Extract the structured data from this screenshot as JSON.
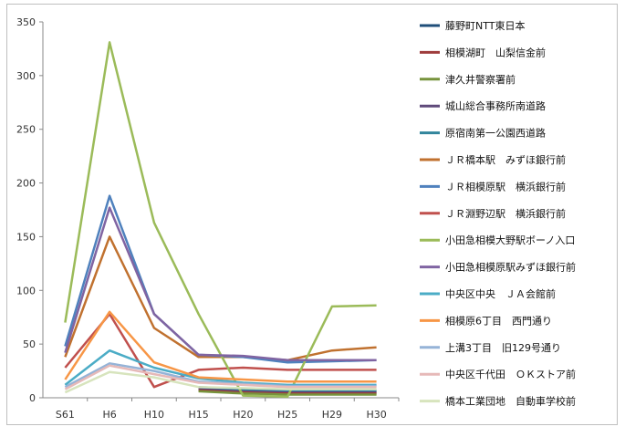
{
  "chart_data": {
    "type": "line",
    "title": "",
    "xlabel": "",
    "ylabel": "",
    "categories": [
      "S61",
      "H6",
      "H10",
      "H15",
      "H20",
      "H25",
      "H29",
      "H30"
    ],
    "ylim": [
      0,
      350
    ],
    "yticks": [
      0,
      50,
      100,
      150,
      200,
      250,
      300,
      350
    ],
    "grid": false,
    "legend": "right",
    "series": [
      {
        "name": "藤野町NTT東日本",
        "color": "#1f4e79",
        "values": [
          null,
          null,
          null,
          8,
          6,
          5,
          5,
          5
        ]
      },
      {
        "name": "相模湖町　山梨信金前",
        "color": "#9e3b3b",
        "values": [
          null,
          null,
          null,
          7,
          5,
          4,
          4,
          4
        ]
      },
      {
        "name": "津久井警察署前",
        "color": "#77933c",
        "values": [
          null,
          null,
          null,
          6,
          4,
          3,
          3,
          3
        ]
      },
      {
        "name": "城山総合事務所南道路",
        "color": "#5f497a",
        "values": [
          null,
          null,
          null,
          9,
          7,
          6,
          6,
          6
        ]
      },
      {
        "name": "原宿南第一公園西道路",
        "color": "#31859c",
        "values": [
          null,
          null,
          null,
          10,
          8,
          7,
          7,
          7
        ]
      },
      {
        "name": "ＪＲ橋本駅　みずほ銀行前",
        "color": "#c0712f",
        "values": [
          38,
          150,
          65,
          38,
          38,
          35,
          44,
          47
        ]
      },
      {
        "name": "ＪＲ相模原駅　横浜銀行前",
        "color": "#4f81bd",
        "values": [
          48,
          188,
          78,
          40,
          38,
          33,
          34,
          35
        ]
      },
      {
        "name": "ＪＲ淵野辺駅　横浜銀行前",
        "color": "#c0504d",
        "values": [
          28,
          78,
          10,
          26,
          28,
          26,
          26,
          26
        ]
      },
      {
        "name": "小田急相模大野駅ボーノ入口",
        "color": "#9bbb59",
        "values": [
          70,
          331,
          163,
          78,
          2,
          1,
          85,
          86
        ]
      },
      {
        "name": "小田急相模原駅みずほ銀行前",
        "color": "#8064a2",
        "values": [
          42,
          177,
          78,
          40,
          39,
          35,
          35,
          35
        ]
      },
      {
        "name": "中央区中央　ＪＡ会館前",
        "color": "#4bacc6",
        "values": [
          12,
          44,
          28,
          18,
          14,
          12,
          12,
          12
        ]
      },
      {
        "name": "相模原6丁目　西門通り",
        "color": "#f79646",
        "values": [
          17,
          80,
          33,
          19,
          17,
          15,
          15,
          15
        ]
      },
      {
        "name": "上溝3丁目　旧129号通り",
        "color": "#95b3d7",
        "values": [
          10,
          32,
          25,
          15,
          13,
          11,
          11,
          11
        ]
      },
      {
        "name": "中央区千代田　ＯＫストア前",
        "color": "#e6b9b8",
        "values": [
          8,
          30,
          22,
          14,
          12,
          10,
          10,
          10
        ]
      },
      {
        "name": "橋本工業団地　自動車学校前",
        "color": "#d7e4bd",
        "values": [
          5,
          24,
          19,
          10,
          9,
          8,
          8,
          8
        ]
      }
    ]
  }
}
